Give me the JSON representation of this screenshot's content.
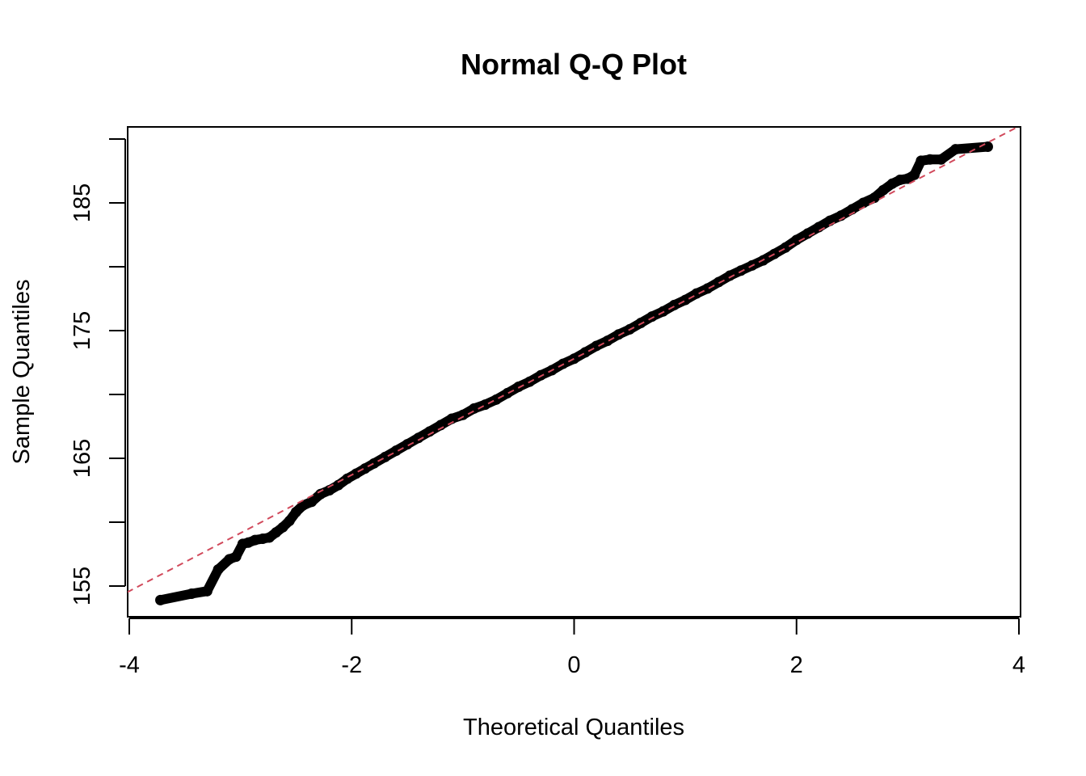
{
  "chart_data": {
    "type": "scatter",
    "title": "Normal Q-Q Plot",
    "xlabel": "Theoretical Quantiles",
    "ylabel": "Sample Quantiles",
    "xlim": [
      -4,
      4
    ],
    "ylim": [
      153,
      190
    ],
    "x_ticks": [
      -4,
      -2,
      0,
      2,
      4
    ],
    "y_ticks": [
      155,
      160,
      165,
      170,
      175,
      180,
      185,
      190
    ],
    "y_tick_labels": [
      {
        "value": 155,
        "label": "155"
      },
      {
        "value": 165,
        "label": "165"
      },
      {
        "value": 175,
        "label": "175"
      },
      {
        "value": 185,
        "label": "185"
      }
    ],
    "grid": false,
    "point_color": "#000000",
    "reference_line": {
      "style": "dashed",
      "color": "#D1495B",
      "intercept": 172.8,
      "slope": 4.55
    },
    "series": [
      {
        "values_x": [
          -3.72,
          -3.44,
          -3.3,
          -3.2,
          -3.1,
          -3.04,
          -2.98,
          -2.93,
          -2.87,
          -2.8,
          -2.74,
          -2.68,
          -2.62,
          -2.56,
          -2.5,
          -2.44,
          -2.36,
          -2.28,
          -2.2,
          -2.12,
          -2.04,
          -1.96,
          -1.88,
          -1.8,
          -1.7,
          -1.6,
          -1.5,
          -1.4,
          -1.3,
          -1.2,
          -1.1,
          -1.0,
          -0.9,
          -0.8,
          -0.7,
          -0.6,
          -0.5,
          -0.4,
          -0.3,
          -0.2,
          -0.1,
          0.0,
          0.1,
          0.2,
          0.3,
          0.4,
          0.5,
          0.6,
          0.7,
          0.8,
          0.9,
          1.0,
          1.1,
          1.2,
          1.3,
          1.4,
          1.5,
          1.6,
          1.7,
          1.8,
          1.9,
          2.0,
          2.1,
          2.2,
          2.3,
          2.4,
          2.5,
          2.6,
          2.7,
          2.78,
          2.86,
          2.93,
          3.0,
          3.06,
          3.12,
          3.2,
          3.3,
          3.43,
          3.72
        ],
        "values_y": [
          153.9,
          154.4,
          154.6,
          156.3,
          157.1,
          157.3,
          158.3,
          158.4,
          158.6,
          158.7,
          158.8,
          159.2,
          159.6,
          160.1,
          160.8,
          161.3,
          161.6,
          162.2,
          162.5,
          162.9,
          163.4,
          163.8,
          164.2,
          164.6,
          165.1,
          165.6,
          166.1,
          166.6,
          167.1,
          167.6,
          168.1,
          168.4,
          168.9,
          169.2,
          169.6,
          170.1,
          170.6,
          171.0,
          171.5,
          171.9,
          172.4,
          172.8,
          173.3,
          173.8,
          174.2,
          174.7,
          175.1,
          175.6,
          176.1,
          176.5,
          177.0,
          177.4,
          177.9,
          178.3,
          178.8,
          179.3,
          179.7,
          180.1,
          180.5,
          181.0,
          181.5,
          182.1,
          182.6,
          183.1,
          183.6,
          184.0,
          184.5,
          185.0,
          185.4,
          186.0,
          186.5,
          186.8,
          186.9,
          187.2,
          188.3,
          188.4,
          188.4,
          189.2,
          189.4
        ]
      }
    ]
  }
}
